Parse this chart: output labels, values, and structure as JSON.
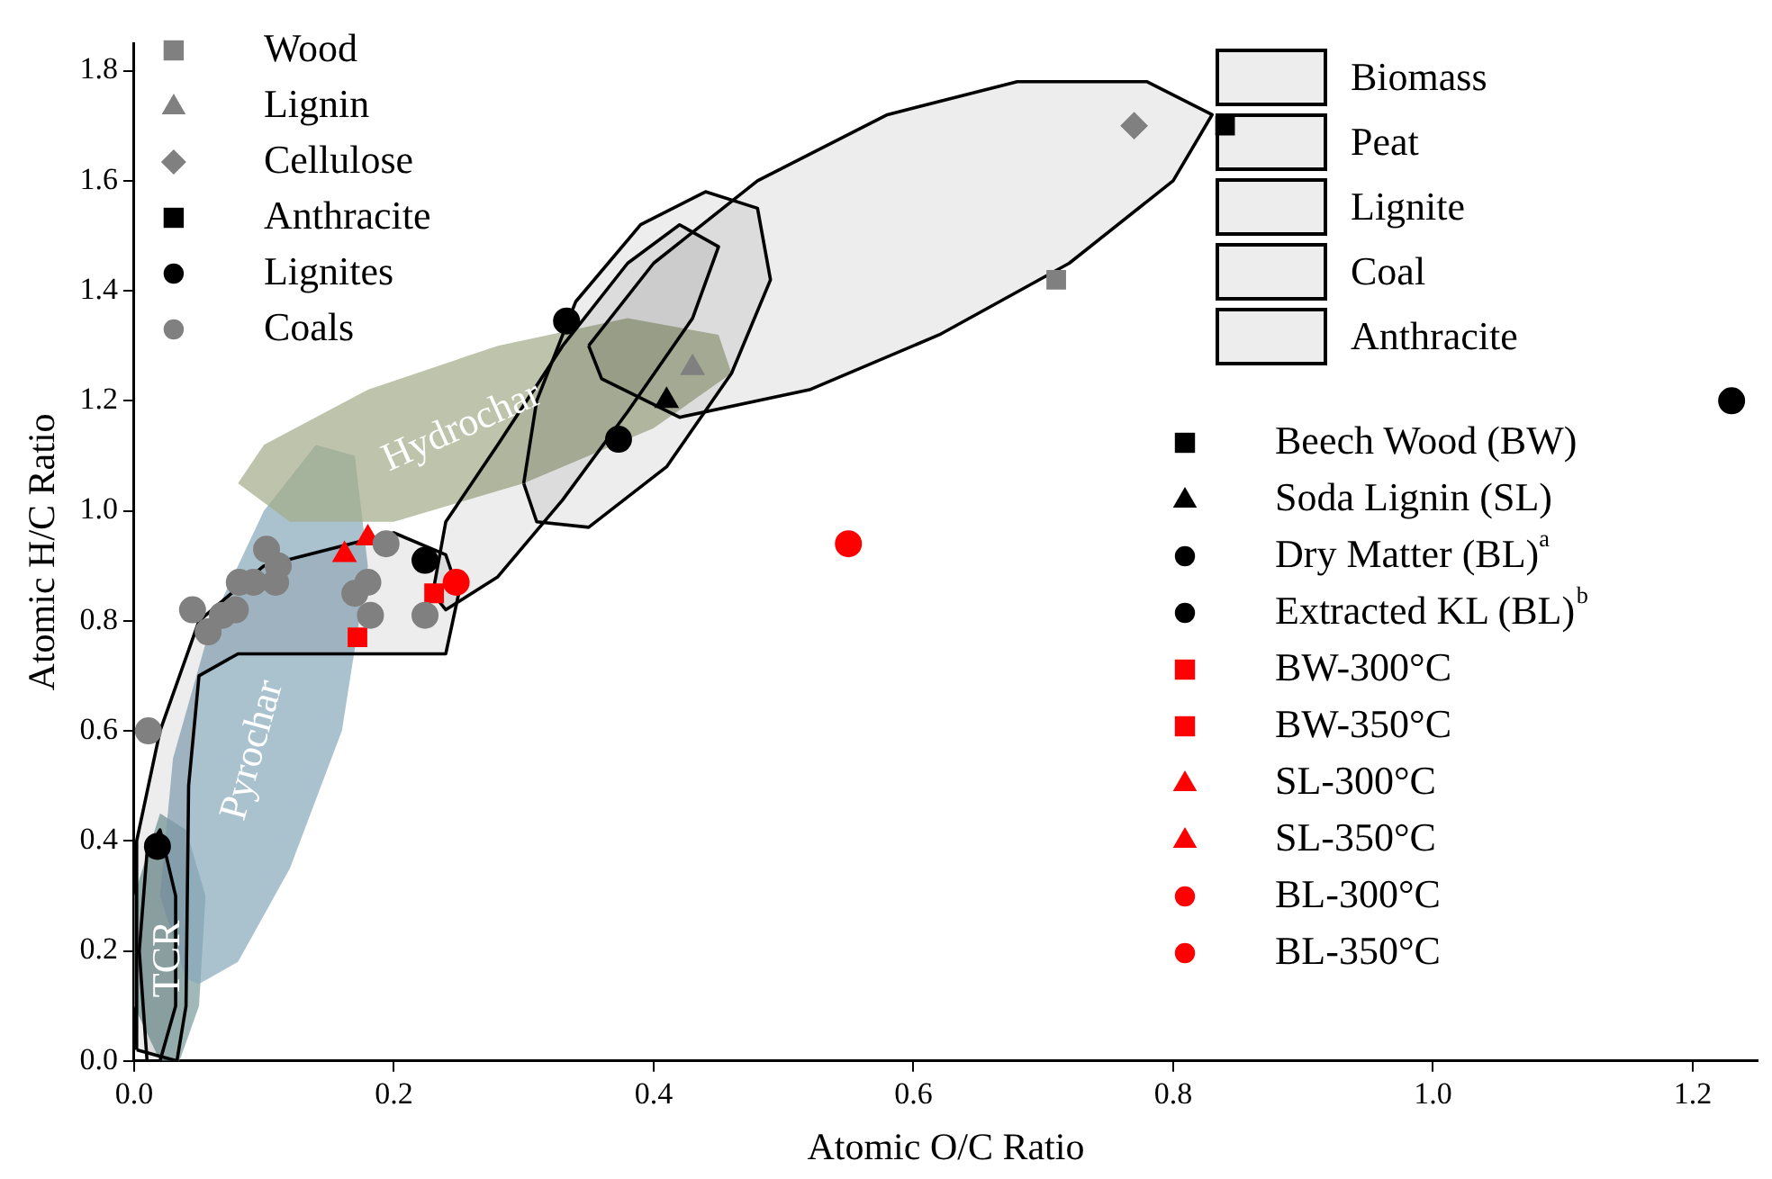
{
  "chart_data": {
    "type": "scatter",
    "xlabel": "Atomic O/C Ratio",
    "ylabel": "Atomic H/C Ratio",
    "xlim": [
      0,
      1.25
    ],
    "xticks": [
      {
        "value": 0,
        "label": "0.0"
      },
      0.2,
      0.4,
      0.6,
      0.8,
      {
        "value": 1,
        "label": "1.0"
      },
      1.2
    ],
    "ylim": [
      0,
      1.85
    ],
    "yticks": [
      {
        "value": 0,
        "label": "0.0"
      },
      0.2,
      0.4,
      0.6,
      0.8,
      {
        "value": 1,
        "label": "1.0"
      },
      1.2,
      1.4,
      1.6,
      1.8
    ],
    "grid": false,
    "legend": "right",
    "series": [
      {
        "name": "Hydrochar",
        "type": "area",
        "color": "#a3ab88",
        "x": [
          0.08,
          0.1,
          0.18,
          0.28,
          0.38,
          0.45,
          0.46,
          0.4,
          0.3,
          0.2,
          0.12,
          0.08
        ],
        "values": [
          1.05,
          1.12,
          1.22,
          1.3,
          1.35,
          1.32,
          1.25,
          1.15,
          1.05,
          0.98,
          0.98,
          1.05
        ]
      },
      {
        "name": "Pyrochar",
        "type": "area",
        "color": "#86a6b9",
        "x": [
          0.04,
          0.02,
          0.03,
          0.06,
          0.1,
          0.14,
          0.17,
          0.18,
          0.16,
          0.12,
          0.08,
          0.05,
          0.04
        ],
        "values": [
          0.15,
          0.3,
          0.55,
          0.8,
          1.0,
          1.12,
          1.1,
          0.9,
          0.6,
          0.35,
          0.18,
          0.14,
          0.15
        ]
      },
      {
        "name": "TCR",
        "type": "area",
        "color": "#789a9a",
        "x": [
          0.02,
          0.0,
          0.0,
          0.02,
          0.04,
          0.055,
          0.05,
          0.035,
          0.02
        ],
        "values": [
          0.0,
          0.1,
          0.3,
          0.45,
          0.42,
          0.3,
          0.1,
          0.0,
          0.0
        ]
      },
      {
        "name": "Biomass",
        "type": "area",
        "line_style": "solid",
        "color": "#000000",
        "x": [
          0.35,
          0.4,
          0.48,
          0.58,
          0.68,
          0.78,
          0.83,
          0.8,
          0.72,
          0.62,
          0.52,
          0.42,
          0.36,
          0.35
        ],
        "values": [
          1.3,
          1.45,
          1.6,
          1.72,
          1.78,
          1.78,
          1.72,
          1.6,
          1.45,
          1.32,
          1.22,
          1.17,
          1.24,
          1.3
        ]
      },
      {
        "name": "Peat",
        "type": "area",
        "line_style": "solid",
        "color": "#000000",
        "x": [
          0.3,
          0.31,
          0.34,
          0.39,
          0.44,
          0.48,
          0.49,
          0.46,
          0.41,
          0.35,
          0.31,
          0.3
        ],
        "values": [
          1.05,
          1.2,
          1.38,
          1.52,
          1.58,
          1.55,
          1.42,
          1.25,
          1.08,
          0.97,
          0.98,
          1.05
        ]
      },
      {
        "name": "Lignite",
        "type": "area",
        "line_style": "solid",
        "color": "#000000",
        "x": [
          0.23,
          0.24,
          0.28,
          0.33,
          0.38,
          0.42,
          0.45,
          0.43,
          0.38,
          0.33,
          0.28,
          0.24,
          0.23
        ],
        "values": [
          0.85,
          0.98,
          1.12,
          1.3,
          1.45,
          1.52,
          1.48,
          1.35,
          1.18,
          1.02,
          0.88,
          0.82,
          0.85
        ]
      },
      {
        "name": "Coal",
        "type": "area",
        "line_style": "solid",
        "color": "#000000",
        "x": [
          0.002,
          0.002,
          0.02,
          0.05,
          0.1,
          0.2,
          0.24,
          0.25,
          0.24,
          0.08,
          0.05,
          0.042,
          0.04,
          0.033,
          0.002
        ],
        "values": [
          0.02,
          0.4,
          0.6,
          0.8,
          0.9,
          0.96,
          0.92,
          0.85,
          0.74,
          0.74,
          0.7,
          0.5,
          0.1,
          0.0,
          0.02
        ]
      },
      {
        "name": "Anthracite",
        "type": "area",
        "line_style": "solid",
        "color": "#000000",
        "x": [
          0.01,
          0.004,
          0.01,
          0.02,
          0.032,
          0.032,
          0.02,
          0.01
        ],
        "values": [
          0.0,
          0.2,
          0.38,
          0.42,
          0.3,
          0.1,
          0.0,
          0.0
        ]
      },
      {
        "name": "Wood",
        "marker": "square",
        "color": "#808080",
        "x": [
          0.71
        ],
        "values": [
          1.42
        ]
      },
      {
        "name": "Lignin",
        "marker": "triangle",
        "color": "#808080",
        "x": [
          0.43
        ],
        "values": [
          1.26
        ]
      },
      {
        "name": "Cellulose",
        "marker": "diamond",
        "color": "#808080",
        "x": [
          0.77
        ],
        "values": [
          1.7
        ]
      },
      {
        "name": "Anthracite",
        "marker": "square",
        "color": "#000000"
      },
      {
        "name": "Lignites",
        "marker": "circle",
        "color": "#000000",
        "x": [
          0.333,
          0.224,
          0.018
        ],
        "values": [
          1.345,
          0.91,
          0.39
        ]
      },
      {
        "name": "Coals",
        "marker": "circle",
        "color": "#808080",
        "x": [
          0.011,
          0.045,
          0.057,
          0.068,
          0.078,
          0.081,
          0.092,
          0.102,
          0.111,
          0.109,
          0.17,
          0.18,
          0.182,
          0.224,
          0.194
        ],
        "values": [
          0.6,
          0.82,
          0.78,
          0.81,
          0.82,
          0.87,
          0.87,
          0.93,
          0.9,
          0.87,
          0.85,
          0.87,
          0.81,
          0.81,
          0.94
        ]
      },
      {
        "name": "Beech Wood (BW)",
        "marker": "square",
        "color": "#000000",
        "x": [
          0.84
        ],
        "values": [
          1.7
        ]
      },
      {
        "name": "Soda Lignin (SL)",
        "marker": "triangle",
        "color": "#000000",
        "x": [
          0.41
        ],
        "values": [
          1.2
        ]
      },
      {
        "name": "Dry Matter (BL)$^{a}$",
        "marker": "circle",
        "color": "#000000",
        "x": [
          1.23
        ],
        "values": [
          1.2
        ]
      },
      {
        "name": "Extracted KL (BL)$^{b}$",
        "marker": "circle",
        "color": "#000000",
        "x": [
          0.373
        ],
        "values": [
          1.13
        ]
      },
      {
        "name": "BW-300°C",
        "marker": "square",
        "color": "#ff0000",
        "x": [
          0.231
        ],
        "values": [
          0.85
        ]
      },
      {
        "name": "BW-350°C",
        "marker": "square",
        "color": "#ff0000",
        "x": [
          0.172
        ],
        "values": [
          0.77
        ]
      },
      {
        "name": "SL-300°C",
        "marker": "triangle",
        "color": "#ff0000",
        "x": [
          0.18
        ],
        "values": [
          0.95
        ]
      },
      {
        "name": "SL-350°C",
        "marker": "triangle",
        "color": "#ff0000",
        "x": [
          0.162
        ],
        "values": [
          0.92
        ]
      },
      {
        "name": "BL-300°C",
        "marker": "circle",
        "color": "#ff0000",
        "x": [
          0.55
        ],
        "values": [
          0.94
        ]
      },
      {
        "name": "BL-350°C",
        "marker": "circle",
        "color": "#ff0000",
        "x": [
          0.248
        ],
        "values": [
          0.87
        ]
      }
    ]
  }
}
